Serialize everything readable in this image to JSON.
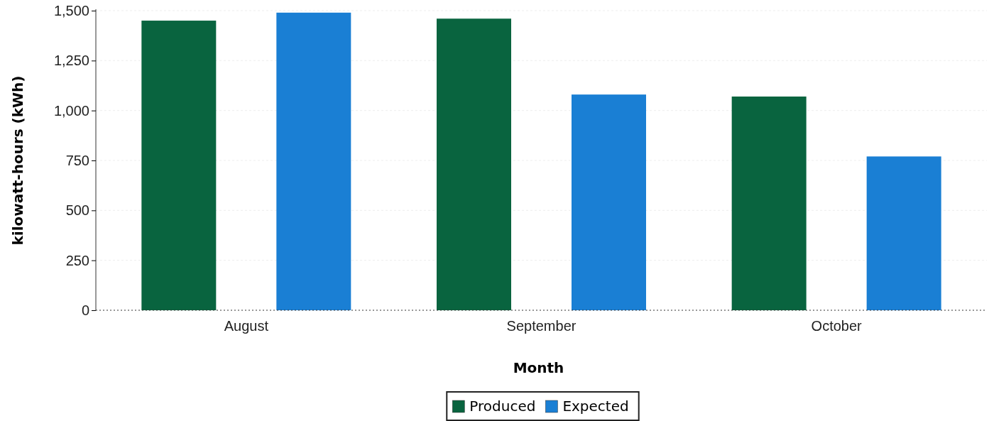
{
  "chart_data": {
    "type": "bar",
    "xlabel": "Month",
    "ylabel": "kilowatt-hours (kWh)",
    "categories": [
      "August",
      "September",
      "October"
    ],
    "series": [
      {
        "name": "Produced",
        "color": "#09643f",
        "values": [
          1450,
          1460,
          1070
        ]
      },
      {
        "name": "Expected",
        "color": "#1a7fd4",
        "values": [
          1490,
          1080,
          770
        ]
      }
    ],
    "ylim": [
      0,
      1500
    ],
    "yticks": [
      0,
      {
        "value": 250,
        "label": "250"
      },
      {
        "value": 500,
        "label": "500"
      },
      {
        "value": 750,
        "label": "750"
      },
      {
        "value": 1000,
        "label": "1,000"
      },
      {
        "value": 1250,
        "label": "1,250"
      },
      {
        "value": 1500,
        "label": "1,500"
      }
    ],
    "grid": "y",
    "legend": "bottom"
  }
}
